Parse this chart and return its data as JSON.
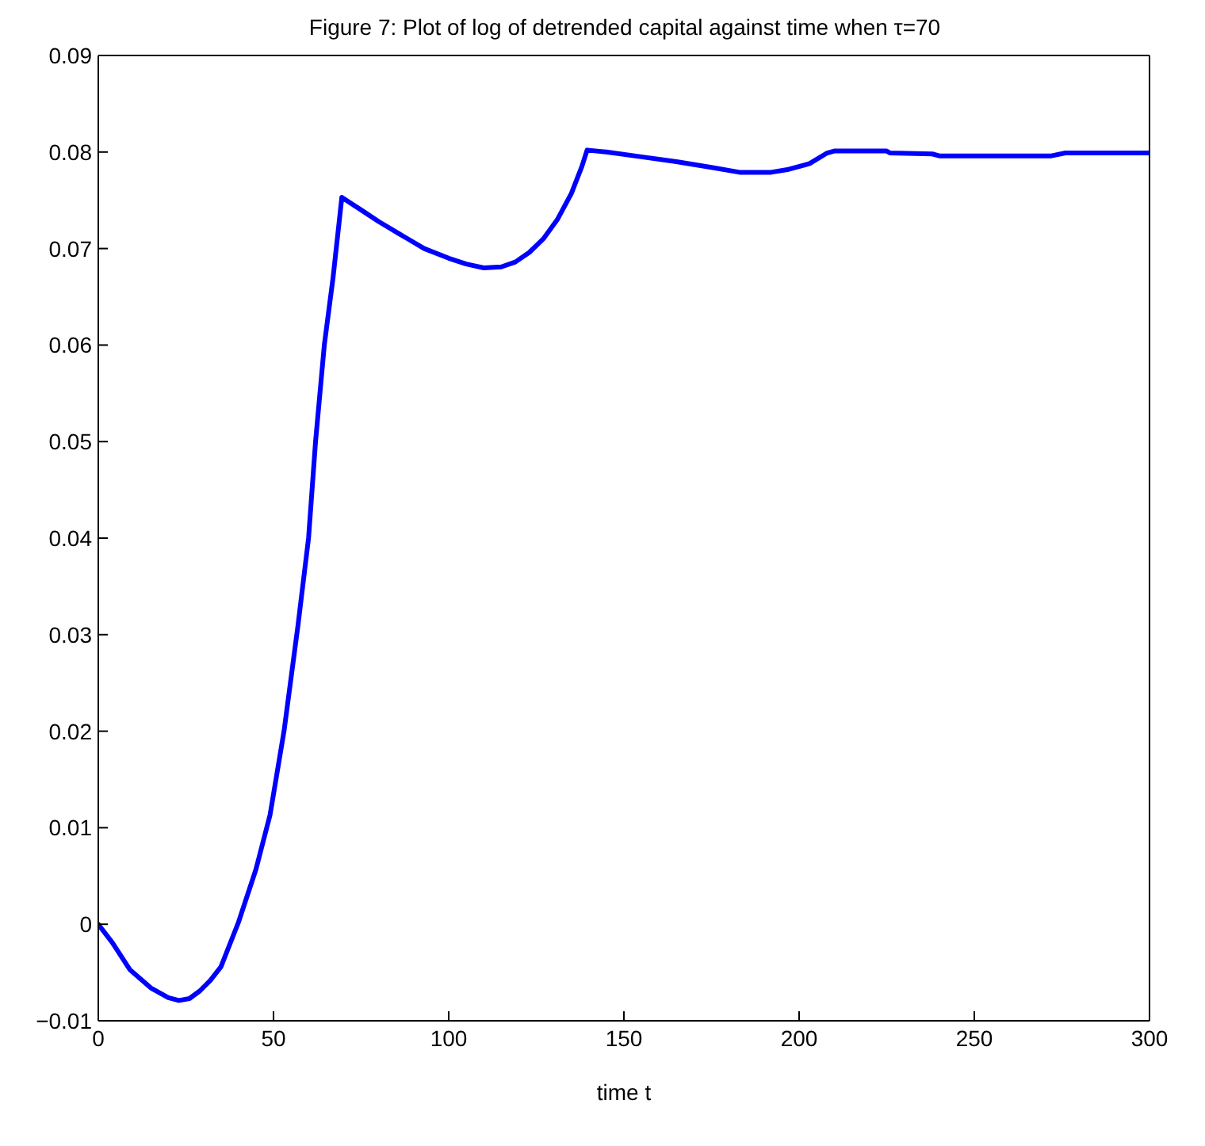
{
  "chart_data": {
    "type": "line",
    "title": "Figure 7: Plot of log of detrended capital against time when τ=70",
    "xlabel": "time t",
    "x": [
      0,
      4,
      9,
      15,
      20,
      23,
      26,
      29,
      32,
      35,
      40,
      45,
      49,
      53,
      57,
      60,
      62,
      64.5,
      67,
      69.5,
      75,
      80,
      86,
      93,
      100,
      105,
      110,
      115,
      119,
      123,
      127,
      131,
      135,
      138,
      139.5,
      145,
      155,
      165,
      175,
      183,
      192,
      197,
      203,
      208,
      210,
      225,
      226,
      238,
      240,
      272,
      276,
      300
    ],
    "series": [
      {
        "color": "#0000ff",
        "values": [
          0,
          -0.0019,
          -0.0047,
          -0.0066,
          -0.0076,
          -0.0079,
          -0.0077,
          -0.0069,
          -0.0058,
          -0.0044,
          0.0002,
          0.0057,
          0.0113,
          0.02,
          0.031,
          0.04,
          0.05,
          0.06,
          0.067,
          0.0753,
          0.074,
          0.0728,
          0.0715,
          0.07,
          0.069,
          0.0684,
          0.068,
          0.0681,
          0.0686,
          0.0696,
          0.071,
          0.073,
          0.0757,
          0.0785,
          0.0802,
          0.08,
          0.0795,
          0.079,
          0.0784,
          0.0779,
          0.0779,
          0.0782,
          0.0788,
          0.0799,
          0.0801,
          0.0801,
          0.0799,
          0.0798,
          0.0796,
          0.0796,
          0.0799,
          0.0799
        ]
      }
    ],
    "xlim": [
      0,
      300
    ],
    "xticks": [
      0,
      50,
      100,
      150,
      200,
      250,
      300
    ],
    "ylim": [
      -0.01,
      0.09
    ],
    "yticks": [
      {
        "value": -0.01,
        "label": "−0.01"
      },
      0,
      0.01,
      0.02,
      0.03,
      0.04,
      0.05,
      0.06,
      0.07,
      0.08,
      0.09
    ],
    "line_style": "solid"
  }
}
